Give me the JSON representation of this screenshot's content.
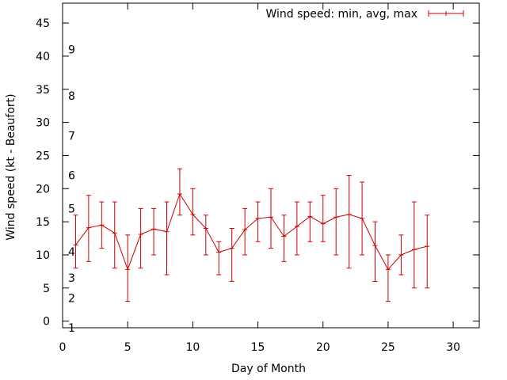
{
  "chart_data": {
    "type": "line",
    "xlabel": "Day of Month",
    "ylabel": "Wind speed (kt - Beaufort)",
    "xlim": [
      0,
      32
    ],
    "ylim": [
      -1,
      48
    ],
    "xticks": [
      0,
      5,
      10,
      15,
      20,
      25,
      30
    ],
    "yticks": [
      0,
      5,
      10,
      15,
      20,
      25,
      30,
      35,
      40,
      45
    ],
    "beaufort_labels": [
      {
        "label": "1",
        "y": -1
      },
      {
        "label": "2",
        "y": 3.5
      },
      {
        "label": "3",
        "y": 6.5
      },
      {
        "label": "4",
        "y": 10.5
      },
      {
        "label": "5",
        "y": 17
      },
      {
        "label": "6",
        "y": 22
      },
      {
        "label": "7",
        "y": 28
      },
      {
        "label": "8",
        "y": 34
      },
      {
        "label": "9",
        "y": 41
      }
    ],
    "legend_position": "top-right",
    "series": [
      {
        "name": "Wind speed: min, avg, max",
        "color": "#cc0000",
        "x": [
          1,
          2,
          3,
          4,
          5,
          6,
          7,
          8,
          9,
          10,
          11,
          12,
          13,
          14,
          15,
          16,
          17,
          18,
          19,
          20,
          21,
          22,
          23,
          24,
          25,
          26,
          27,
          28
        ],
        "avg": [
          11.5,
          14.1,
          14.5,
          13.3,
          7.8,
          13.1,
          13.9,
          13.5,
          19.2,
          16.1,
          14.0,
          10.4,
          11.0,
          13.8,
          15.5,
          15.7,
          12.8,
          14.3,
          15.8,
          14.7,
          15.7,
          16.1,
          15.5,
          11.4,
          7.8,
          10.0,
          10.8,
          11.3
        ],
        "min": [
          8,
          9,
          11,
          8,
          3,
          8,
          10,
          7,
          16,
          13,
          10,
          7,
          6,
          10,
          12,
          11,
          9,
          10,
          12,
          12,
          10,
          8,
          10,
          6,
          3,
          7,
          5,
          5
        ],
        "max": [
          16,
          19,
          18,
          18,
          13,
          17,
          17,
          18,
          23,
          20,
          16,
          12,
          14,
          17,
          18,
          20,
          16,
          18,
          18,
          19,
          20,
          22,
          21,
          15,
          10,
          13,
          18,
          16
        ]
      }
    ]
  }
}
